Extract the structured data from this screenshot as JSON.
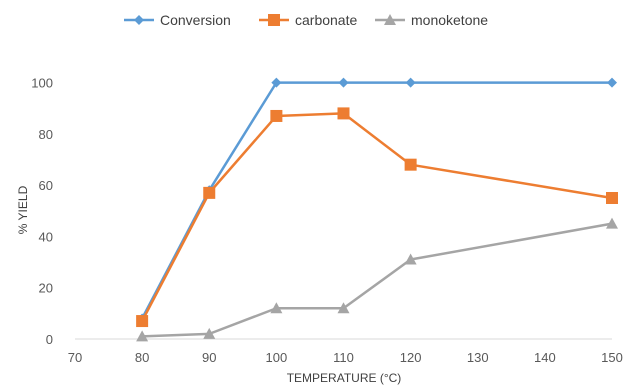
{
  "chart_data": {
    "type": "line",
    "title": "",
    "xlabel": "TEMPERATURE (°C)",
    "ylabel": "% YIELD",
    "xlim": [
      70,
      150
    ],
    "ylim": [
      0,
      110
    ],
    "x_ticks": [
      70,
      80,
      90,
      100,
      110,
      120,
      130,
      140,
      150
    ],
    "y_ticks": [
      0,
      20,
      40,
      60,
      80,
      100
    ],
    "grid": false,
    "legend_position": "top",
    "series": [
      {
        "name": "Conversion",
        "color": "#5B9BD5",
        "marker": "diamond",
        "x": [
          80,
          90,
          100,
          110,
          120,
          150
        ],
        "y": [
          8,
          58,
          100,
          100,
          100,
          100
        ]
      },
      {
        "name": "carbonate",
        "color": "#ED7D31",
        "marker": "square",
        "x": [
          80,
          90,
          100,
          110,
          120,
          150
        ],
        "y": [
          7,
          57,
          87,
          88,
          68,
          55
        ]
      },
      {
        "name": "monoketone",
        "color": "#A5A5A5",
        "marker": "triangle",
        "x": [
          80,
          90,
          100,
          110,
          120,
          150
        ],
        "y": [
          1,
          2,
          12,
          12,
          31,
          45
        ]
      }
    ]
  }
}
